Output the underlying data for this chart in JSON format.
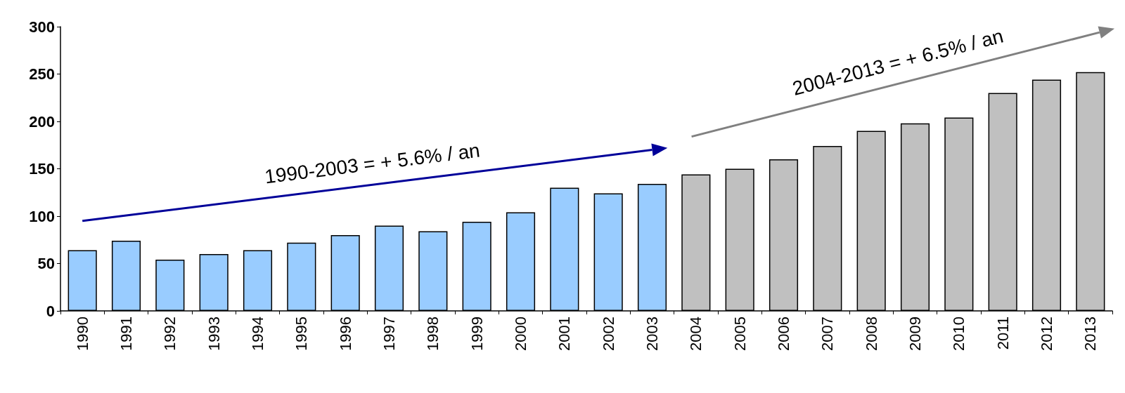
{
  "chart_data": {
    "type": "bar",
    "categories": [
      "1990",
      "1991",
      "1992",
      "1993",
      "1994",
      "1995",
      "1996",
      "1997",
      "1998",
      "1999",
      "2000",
      "2001",
      "2002",
      "2003",
      "2004",
      "2005",
      "2006",
      "2007",
      "2008",
      "2009",
      "2010",
      "2011",
      "2012",
      "2013"
    ],
    "values": [
      64,
      74,
      54,
      60,
      64,
      72,
      80,
      90,
      84,
      94,
      104,
      130,
      124,
      134,
      144,
      150,
      160,
      174,
      190,
      198,
      204,
      230,
      244,
      252
    ],
    "colors": [
      "#99ccff",
      "#99ccff",
      "#99ccff",
      "#99ccff",
      "#99ccff",
      "#99ccff",
      "#99ccff",
      "#99ccff",
      "#99ccff",
      "#99ccff",
      "#99ccff",
      "#99ccff",
      "#99ccff",
      "#99ccff",
      "#c0c0c0",
      "#c0c0c0",
      "#c0c0c0",
      "#c0c0c0",
      "#c0c0c0",
      "#c0c0c0",
      "#c0c0c0",
      "#c0c0c0",
      "#c0c0c0",
      "#c0c0c0"
    ],
    "ylim": [
      0,
      300
    ],
    "yticks": [
      0,
      50,
      100,
      150,
      200,
      250,
      300
    ],
    "grid": false,
    "annotations": [
      "1990-2003 = + 5.6% / an",
      "2004-2013 = + 6.5% / an"
    ]
  }
}
